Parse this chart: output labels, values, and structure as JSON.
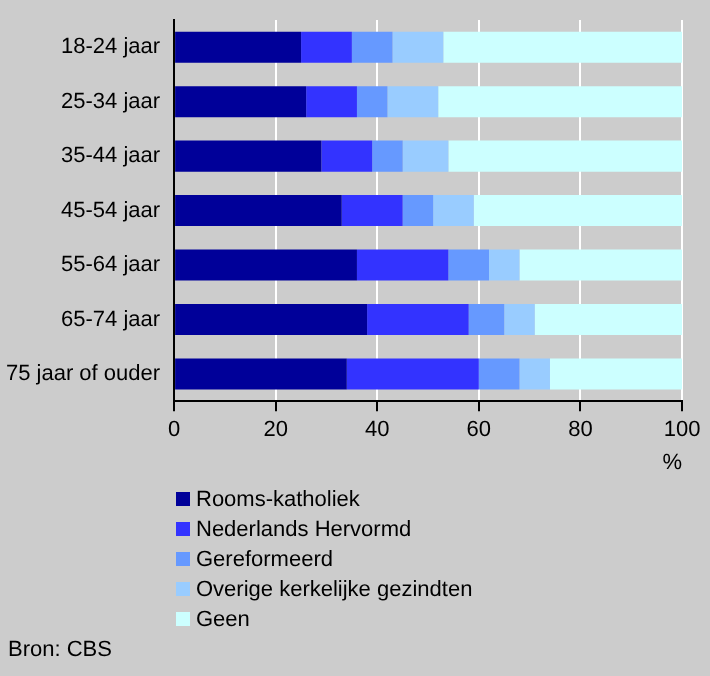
{
  "chart_data": {
    "type": "bar",
    "orientation": "horizontal",
    "stacked": true,
    "categories": [
      "18-24 jaar",
      "25-34 jaar",
      "35-44 jaar",
      "45-54 jaar",
      "55-64 jaar",
      "65-74 jaar",
      "75 jaar of ouder"
    ],
    "series": [
      {
        "name": "Rooms-katholiek",
        "color": "#000099",
        "values": [
          25,
          26,
          29,
          33,
          36,
          38,
          34
        ]
      },
      {
        "name": "Nederlands Hervormd",
        "color": "#3333ff",
        "values": [
          10,
          10,
          10,
          12,
          18,
          20,
          26
        ]
      },
      {
        "name": "Gereformeerd",
        "color": "#6699ff",
        "values": [
          8,
          6,
          6,
          6,
          8,
          7,
          8
        ]
      },
      {
        "name": "Overige kerkelijke gezindten",
        "color": "#99ccff",
        "values": [
          10,
          10,
          9,
          8,
          6,
          6,
          6
        ]
      },
      {
        "name": "Geen",
        "color": "#ccffff",
        "values": [
          47,
          48,
          46,
          41,
          32,
          29,
          26
        ]
      }
    ],
    "xlabel": "%",
    "xlim": [
      0,
      100
    ],
    "xticks": [
      0,
      20,
      40,
      60,
      80,
      100
    ],
    "grid": "x",
    "legend": "bottom",
    "annotations": [
      "Bron: CBS"
    ]
  }
}
